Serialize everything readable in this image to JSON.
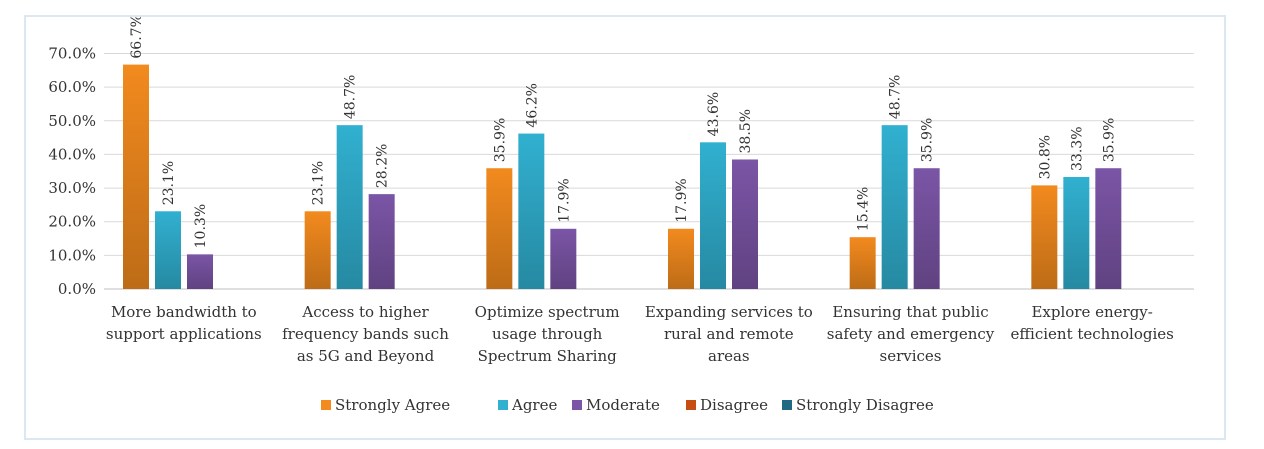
{
  "chart_data": {
    "type": "bar",
    "categories": [
      [
        "More bandwidth to",
        "support applications"
      ],
      [
        "Access to higher",
        "frequency bands such",
        "as 5G and Beyond"
      ],
      [
        "Optimize spectrum",
        "usage through",
        "Spectrum Sharing"
      ],
      [
        "Expanding services to",
        "rural and remote",
        "areas"
      ],
      [
        "Ensuring that public",
        "safety and emergency",
        "services"
      ],
      [
        "Explore energy-",
        "efficient technologies"
      ]
    ],
    "series": [
      {
        "name": "Strongly Agree",
        "color": "#f28a1e",
        "values": [
          66.7,
          23.1,
          35.9,
          17.9,
          15.4,
          30.8
        ],
        "labels": [
          "66.7%",
          "23.1%",
          "35.9%",
          "17.9%",
          "15.4%",
          "30.8%"
        ]
      },
      {
        "name": "Agree",
        "color": "#31b0d0",
        "values": [
          23.1,
          48.7,
          46.2,
          43.6,
          48.7,
          33.3
        ],
        "labels": [
          "23.1%",
          "48.7%",
          "46.2%",
          "43.6%",
          "48.7%",
          "33.3%"
        ]
      },
      {
        "name": "Moderate",
        "color": "#7b55a6",
        "values": [
          10.3,
          28.2,
          17.9,
          38.5,
          35.9,
          35.9
        ],
        "labels": [
          "10.3%",
          "28.2%",
          "17.9%",
          "38.5%",
          "35.9%",
          "35.9%"
        ]
      },
      {
        "name": "Disagree",
        "color": "#c64d14",
        "values": [
          null,
          null,
          null,
          null,
          null,
          null
        ],
        "labels": []
      },
      {
        "name": "Strongly Disagree",
        "color": "#1f6a82",
        "values": [
          null,
          null,
          null,
          null,
          null,
          null
        ],
        "labels": []
      }
    ],
    "yticks": [
      "0.0%",
      "10.0%",
      "20.0%",
      "30.0%",
      "40.0%",
      "50.0%",
      "60.0%",
      "70.0%"
    ],
    "ylim": [
      0,
      70
    ],
    "grid": true,
    "legend_position": "bottom"
  }
}
